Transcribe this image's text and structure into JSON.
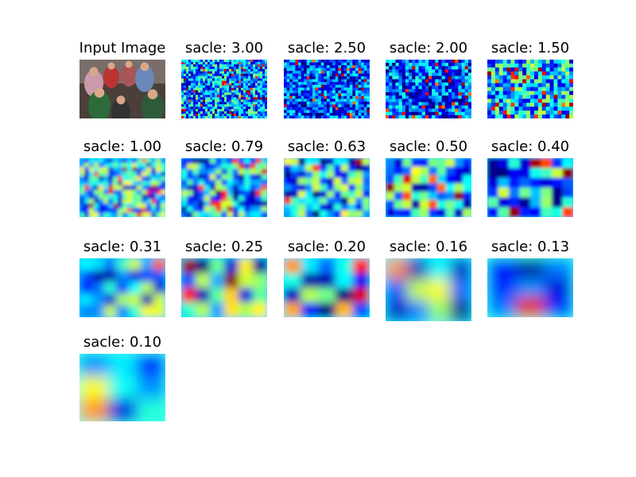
{
  "panels": [
    {
      "title": "Input Image"
    },
    {
      "title": "sacle: 3.00"
    },
    {
      "title": "sacle: 2.50"
    },
    {
      "title": "sacle: 2.00"
    },
    {
      "title": "sacle: 1.50"
    },
    {
      "title": "sacle: 1.00"
    },
    {
      "title": "sacle: 0.79"
    },
    {
      "title": "sacle: 0.63"
    },
    {
      "title": "sacle: 0.50"
    },
    {
      "title": "sacle: 0.40"
    },
    {
      "title": "sacle: 0.31"
    },
    {
      "title": "sacle: 0.25"
    },
    {
      "title": "sacle: 0.20"
    },
    {
      "title": "sacle: 0.16"
    },
    {
      "title": "sacle: 0.13"
    },
    {
      "title": "sacle: 0.10"
    }
  ]
}
